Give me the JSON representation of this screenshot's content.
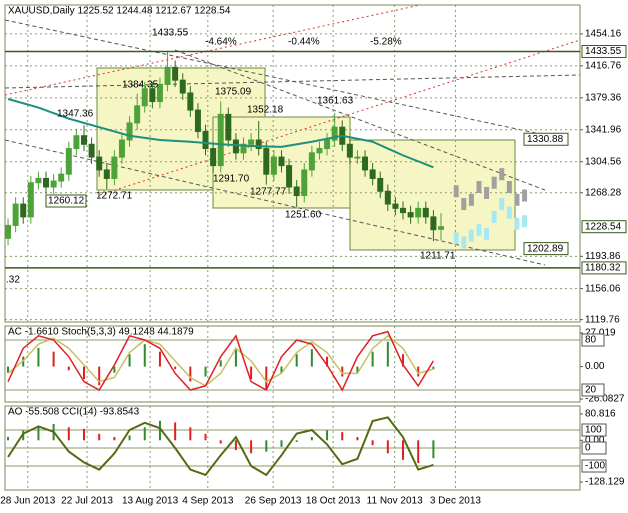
{
  "chart_data": {
    "type": "candlestick",
    "title": "XAUUSD,Daily  1225.52 1244.48 1212.67 1228.54",
    "open": [
      1215,
      1230,
      1255,
      1240,
      1280,
      1285,
      1275,
      1282,
      1290,
      1320,
      1335,
      1325,
      1310,
      1295,
      1285,
      1310,
      1330,
      1350,
      1370,
      1390,
      1375,
      1395,
      1415,
      1400,
      1385,
      1365,
      1340,
      1320,
      1300,
      1360,
      1330,
      1315,
      1325,
      1330,
      1320,
      1290,
      1310,
      1300,
      1275,
      1265,
      1295,
      1315,
      1320,
      1330,
      1345,
      1325,
      1310,
      1310,
      1295,
      1285,
      1270,
      1255,
      1250,
      1245,
      1240,
      1250,
      1240,
      1225.52
    ],
    "high": [
      1238,
      1263,
      1263,
      1288,
      1293,
      1293,
      1290,
      1298,
      1328,
      1343,
      1347.36,
      1333,
      1318,
      1303,
      1318,
      1338,
      1358,
      1384.35,
      1398,
      1398,
      1403,
      1433.55,
      1423,
      1408,
      1393,
      1373,
      1348,
      1328,
      1375.09,
      1368,
      1338,
      1333,
      1338,
      1352.18,
      1328,
      1318,
      1318,
      1308,
      1283,
      1303,
      1323,
      1328,
      1338,
      1361.63,
      1353,
      1333,
      1318,
      1318,
      1303,
      1293,
      1278,
      1263,
      1258,
      1253,
      1258,
      1258,
      1248,
      1244.48
    ],
    "low": [
      1207,
      1222,
      1232,
      1232,
      1272,
      1267,
      1267,
      1274,
      1282,
      1312,
      1317,
      1302,
      1287,
      1272.71,
      1277,
      1302,
      1322,
      1342,
      1362,
      1367,
      1367,
      1387,
      1392,
      1377,
      1357,
      1332,
      1312,
      1291.7,
      1292,
      1322,
      1307,
      1307,
      1317,
      1312,
      1277.77,
      1282,
      1292,
      1267,
      1251.6,
      1257,
      1287,
      1307,
      1312,
      1322,
      1317,
      1302,
      1302,
      1287,
      1277,
      1262,
      1247,
      1242,
      1237,
      1232,
      1232,
      1232,
      1211.71,
      1212.67
    ],
    "close": [
      1230,
      1255,
      1240,
      1280,
      1285,
      1275,
      1282,
      1290,
      1320,
      1335,
      1325,
      1310,
      1295,
      1285,
      1310,
      1330,
      1350,
      1370,
      1390,
      1375,
      1395,
      1415,
      1400,
      1385,
      1365,
      1340,
      1320,
      1300,
      1360,
      1330,
      1315,
      1325,
      1330,
      1320,
      1290,
      1310,
      1300,
      1275,
      1265,
      1295,
      1315,
      1320,
      1330,
      1345,
      1325,
      1310,
      1310,
      1295,
      1285,
      1270,
      1255,
      1250,
      1245,
      1240,
      1250,
      1240,
      1225,
      1228.54
    ],
    "up_color": "#4ea23a",
    "down_color": "#2d6a1e",
    "ma": {
      "color": "#1f8f7f",
      "x": [
        0,
        4,
        8,
        12,
        16,
        20,
        24,
        28,
        32,
        36,
        40,
        44,
        48,
        52,
        56
      ],
      "values": [
        1378,
        1368,
        1355,
        1345,
        1335,
        1330,
        1328,
        1325,
        1323,
        1322,
        1328,
        1335,
        1328,
        1312,
        1298
      ]
    },
    "forecast_upper": {
      "color": "#a0a0a0",
      "x": [
        59,
        60,
        61,
        62,
        63,
        64,
        65,
        66,
        67,
        68
      ],
      "values": [
        1270,
        1255,
        1260,
        1275,
        1268,
        1280,
        1290,
        1275,
        1260,
        1265
      ]
    },
    "forecast_lower": {
      "color": "#a8e8f0",
      "x": [
        59,
        60,
        61,
        62,
        63,
        64,
        65,
        66,
        67,
        68
      ],
      "values": [
        1215,
        1210,
        1218,
        1225,
        1220,
        1240,
        1255,
        1245,
        1232,
        1235
      ]
    },
    "xlim": [
      -0.4,
      75.3
    ],
    "ylim": [
      1117,
      1488
    ],
    "yticks": [
      1454.16,
      1416.76,
      1379.36,
      1341.96,
      1304.56,
      1268.28,
      1193.86,
      1156.06,
      1119.76
    ],
    "price_markers": [
      1433.55,
      1330.88,
      1228.54,
      1202.89,
      1180.32
    ],
    "annotations": [
      "1433.55",
      "1384.35",
      "1375.09",
      "1347.36",
      "1352.18",
      "1361.63",
      "1291.70",
      "1277.77",
      "1272.71",
      "1260.12",
      "1251.60",
      "1211.71",
      "-4.64%",
      "-0.44%",
      "-5.28%",
      ".32"
    ],
    "xticks": [
      {
        "value": 2.6,
        "label": "28 Jun 2013"
      },
      {
        "value": 10.4,
        "label": "22 Jul 2013"
      },
      {
        "value": 18.7,
        "label": "13 Aug 2013"
      },
      {
        "value": 26.3,
        "label": "4 Sep 2013"
      },
      {
        "value": 34.9,
        "label": "26 Sep 2013"
      },
      {
        "value": 42.8,
        "label": "18 Oct 2013"
      },
      {
        "value": 50.9,
        "label": "11 Nov 2013"
      },
      {
        "value": 58.9,
        "label": "3 Dec 2013"
      }
    ],
    "grid": true,
    "ac_panel": {
      "legend": "AC -1.6610  Stoch(5,3,3) 49.1248 44.1879",
      "x": [
        0,
        2,
        4,
        6,
        8,
        10,
        12,
        14,
        16,
        18,
        20,
        22,
        24,
        26,
        28,
        30,
        32,
        34,
        36,
        38,
        40,
        42,
        44,
        46,
        48,
        50,
        52,
        54,
        56
      ],
      "ac": [
        -5,
        8,
        15,
        12,
        -3,
        -10,
        -15,
        -5,
        10,
        18,
        12,
        -2,
        -12,
        -8,
        5,
        15,
        -10,
        -18,
        -5,
        10,
        14,
        8,
        -8,
        -5,
        12,
        20,
        10,
        -8,
        -2
      ],
      "ac_up_color": "#2e8b2e",
      "ac_down_color": "#e02020",
      "stoch_main": [
        30,
        70,
        85,
        80,
        60,
        30,
        20,
        50,
        85,
        80,
        70,
        40,
        20,
        25,
        60,
        85,
        30,
        20,
        60,
        80,
        75,
        50,
        20,
        60,
        85,
        90,
        50,
        25,
        55
      ],
      "stoch_signal": [
        40,
        55,
        75,
        82,
        70,
        50,
        30,
        35,
        65,
        80,
        75,
        55,
        35,
        25,
        40,
        70,
        55,
        30,
        40,
        65,
        78,
        65,
        40,
        40,
        70,
        85,
        70,
        40,
        45
      ],
      "stoch_main_color": "#e02020",
      "stoch_signal_color": "#c8c060",
      "aclim": [
        -26.0827,
        27.019
      ],
      "acticks": [
        27.019,
        {
          "value": 0,
          "label": "0.00"
        },
        -26.0827
      ],
      "stochlim": [
        9.2,
        88.4
      ],
      "stochticks": [
        80,
        20
      ]
    },
    "ao_panel": {
      "legend": "AO -55.508  CCI(14) -93.8543",
      "x": [
        0,
        2,
        4,
        6,
        8,
        10,
        12,
        14,
        16,
        18,
        20,
        22,
        24,
        26,
        28,
        30,
        32,
        34,
        36,
        38,
        40,
        42,
        44,
        46,
        48,
        50,
        52,
        54,
        56
      ],
      "ao": [
        10,
        30,
        45,
        50,
        40,
        35,
        20,
        10,
        15,
        40,
        60,
        55,
        40,
        20,
        -10,
        -30,
        -40,
        -35,
        -20,
        -5,
        10,
        30,
        25,
        10,
        -15,
        -40,
        -60,
        -70,
        -55
      ],
      "ao_up_color": "#2e8b2e",
      "ao_down_color": "#e02020",
      "cci": [
        -50,
        80,
        120,
        90,
        -20,
        -80,
        -120,
        -30,
        100,
        140,
        110,
        0,
        -120,
        -150,
        -40,
        60,
        -100,
        -150,
        -40,
        80,
        100,
        20,
        -90,
        -60,
        150,
        170,
        60,
        -120,
        -94
      ],
      "cci_color": "#556b12",
      "aolim": [
        -128.129,
        80.816
      ],
      "aoticks": [
        80.816,
        {
          "value": 0,
          "label": "0.00"
        },
        -128.129
      ],
      "ccilim": [
        -188.9,
        188.9
      ],
      "cciticks": [
        100,
        0,
        -100
      ]
    }
  }
}
